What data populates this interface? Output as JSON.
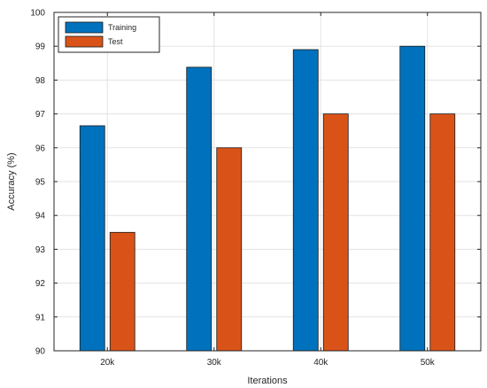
{
  "chart_data": {
    "type": "bar",
    "title": "",
    "xlabel": "Iterations",
    "ylabel": "Accuracy (%)",
    "categories": [
      "20k",
      "30k",
      "40k",
      "50k"
    ],
    "ylim": [
      90,
      100
    ],
    "yticks": [
      90,
      91,
      92,
      93,
      94,
      95,
      96,
      97,
      98,
      99,
      100
    ],
    "grid": true,
    "legend_position": "top-left",
    "series": [
      {
        "name": "Training",
        "color": "#0072BD",
        "values": [
          96.65,
          98.38,
          98.9,
          99.0
        ]
      },
      {
        "name": "Test",
        "color": "#D95319",
        "values": [
          93.5,
          96.0,
          97.0,
          97.0
        ]
      }
    ]
  }
}
